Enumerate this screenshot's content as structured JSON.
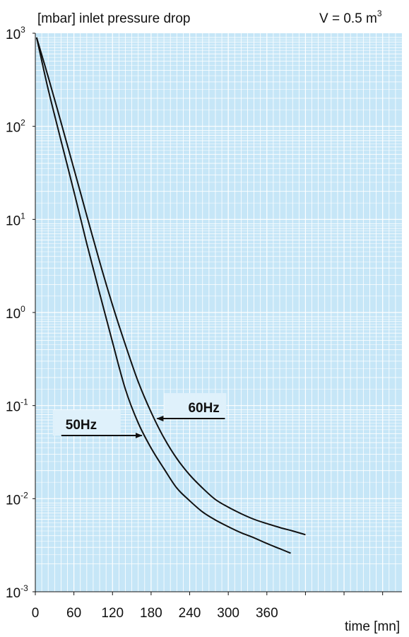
{
  "chart_data": {
    "type": "line",
    "title": "[mbar] inlet pressure drop",
    "annotation": {
      "prefix": "V = 0.5 m",
      "exponent": "3"
    },
    "xlabel": "time [mn]",
    "ylabel": "[mbar]",
    "x_ticks": [
      "0",
      "60",
      "120",
      "180",
      "240",
      "300",
      "360"
    ],
    "x_tick_values": [
      0,
      60,
      120,
      180,
      240,
      300,
      360
    ],
    "xlim": [
      0,
      570
    ],
    "y_scale": "log",
    "ylim": [
      0.001,
      1000
    ],
    "y_ticks": [
      {
        "value": 1000,
        "base": "10",
        "exp": "3"
      },
      {
        "value": 100,
        "base": "10",
        "exp": "2"
      },
      {
        "value": 10,
        "base": "10",
        "exp": "1"
      },
      {
        "value": 1,
        "base": "10",
        "exp": "0"
      },
      {
        "value": 0.1,
        "base": "10",
        "exp": "-1"
      },
      {
        "value": 0.01,
        "base": "10",
        "exp": "-2"
      },
      {
        "value": 0.001,
        "base": "10",
        "exp": "-3"
      }
    ],
    "grid": true,
    "background_color": "#c6e6f7",
    "grid_color": "#ffffff",
    "line_color": "#111111",
    "series": [
      {
        "name": "60Hz",
        "x": [
          2,
          20,
          40,
          60,
          80,
          100,
          120,
          140,
          160,
          180,
          200,
          220,
          240,
          260,
          280,
          300,
          320,
          340,
          360,
          380,
          400,
          420
        ],
        "y": [
          900,
          340,
          110,
          35,
          11,
          3.5,
          1.2,
          0.45,
          0.18,
          0.085,
          0.045,
          0.027,
          0.018,
          0.013,
          0.0098,
          0.0081,
          0.0069,
          0.006,
          0.0054,
          0.0049,
          0.0045,
          0.0041
        ]
      },
      {
        "name": "50Hz",
        "x": [
          2,
          20,
          40,
          60,
          80,
          100,
          120,
          140,
          160,
          180,
          200,
          220,
          240,
          260,
          280,
          300,
          320,
          340,
          360,
          380,
          397
        ],
        "y": [
          900,
          250,
          70,
          20,
          5.5,
          1.6,
          0.48,
          0.15,
          0.065,
          0.035,
          0.021,
          0.013,
          0.0095,
          0.0072,
          0.0059,
          0.005,
          0.0043,
          0.0038,
          0.0033,
          0.0029,
          0.0026
        ]
      }
    ],
    "labels": [
      {
        "text": "60Hz",
        "series": "60Hz",
        "arrow_at_x": 185
      },
      {
        "text": "50Hz",
        "series": "50Hz",
        "arrow_at_x": 170
      }
    ]
  }
}
